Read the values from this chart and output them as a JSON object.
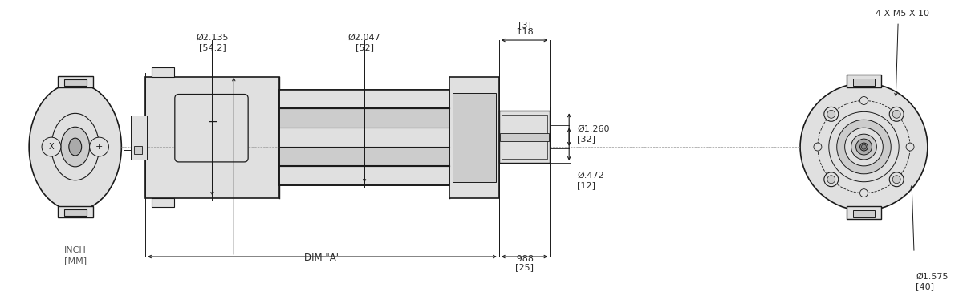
{
  "bg_color": "#ffffff",
  "lc": "#1a1a1a",
  "fc_light": "#e0e0e0",
  "fc_mid": "#cccccc",
  "fc_dark": "#aaaaaa",
  "fc_darker": "#888888",
  "tc": "#2a2a2a",
  "dim_lc": "#2a2a2a",
  "figsize": [
    12.0,
    3.79
  ],
  "dpi": 100,
  "annotations": {
    "dim_a": "DIM \"A\"",
    "d988": ".988\n[25]",
    "d2135": "Ø2.135\n[54.2]",
    "d2047": "Ø2.047\n[52]",
    "d118": ".118\n[3]",
    "d1260": "Ø1.260\n[32]",
    "d472": "Ø.472\n[12]",
    "d1575": "Ø1.575\n[40]",
    "inch_mm": "INCH\n[MM]",
    "bolts": "4 X M5 X 10"
  }
}
